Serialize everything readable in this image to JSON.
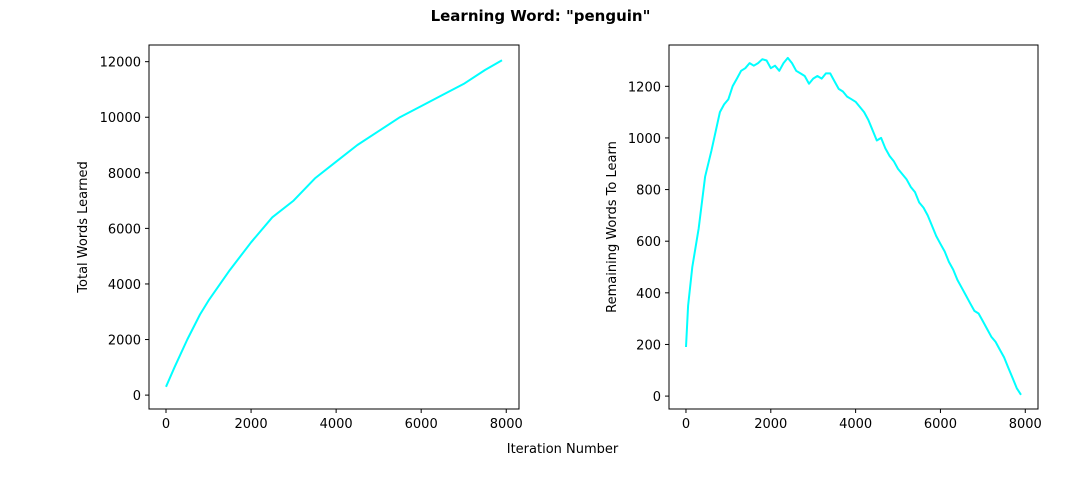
{
  "figure": {
    "title": "Learning Word: \"penguin\"",
    "xlabel": "Iteration Number"
  },
  "colors": {
    "line": "#00ffff"
  },
  "chart_data": [
    {
      "type": "line",
      "name": "total-words-learned",
      "xlabel": "",
      "ylabel": "Total Words Learned",
      "xlim": [
        -400,
        8300
      ],
      "ylim": [
        -500,
        12600
      ],
      "xticks": [
        0,
        2000,
        4000,
        6000,
        8000
      ],
      "yticks": [
        0,
        2000,
        4000,
        6000,
        8000,
        10000,
        12000
      ],
      "series": [
        {
          "x": [
            0,
            200,
            500,
            800,
            1000,
            1500,
            2000,
            2500,
            3000,
            3500,
            4000,
            4500,
            5000,
            5500,
            6000,
            6500,
            7000,
            7500,
            7900
          ],
          "y": [
            300,
            1000,
            2000,
            2900,
            3400,
            4500,
            5500,
            6400,
            7000,
            7800,
            8400,
            9000,
            9500,
            10000,
            10400,
            10800,
            11200,
            11700,
            12050
          ]
        }
      ]
    },
    {
      "type": "line",
      "name": "remaining-words-to-learn",
      "xlabel": "",
      "ylabel": "Remaining Words To Learn",
      "xlim": [
        -400,
        8300
      ],
      "ylim": [
        -50,
        1360
      ],
      "xticks": [
        0,
        2000,
        4000,
        6000,
        8000
      ],
      "yticks": [
        0,
        200,
        400,
        600,
        800,
        1000,
        1200
      ],
      "series": [
        {
          "x": [
            0,
            50,
            150,
            300,
            450,
            600,
            800,
            900,
            1000,
            1100,
            1200,
            1300,
            1400,
            1500,
            1600,
            1700,
            1800,
            1900,
            2000,
            2100,
            2200,
            2300,
            2400,
            2500,
            2600,
            2700,
            2800,
            2900,
            3000,
            3100,
            3200,
            3300,
            3400,
            3500,
            3600,
            3700,
            3800,
            3900,
            4000,
            4100,
            4200,
            4300,
            4400,
            4500,
            4600,
            4700,
            4800,
            4900,
            5000,
            5100,
            5200,
            5300,
            5400,
            5500,
            5600,
            5700,
            5800,
            5900,
            6000,
            6100,
            6200,
            6300,
            6400,
            6500,
            6600,
            6700,
            6800,
            6900,
            7000,
            7100,
            7200,
            7300,
            7400,
            7500,
            7600,
            7700,
            7800,
            7900
          ],
          "y": [
            190,
            350,
            500,
            650,
            850,
            950,
            1100,
            1130,
            1150,
            1200,
            1230,
            1260,
            1270,
            1290,
            1280,
            1290,
            1305,
            1300,
            1270,
            1280,
            1260,
            1290,
            1310,
            1290,
            1260,
            1250,
            1240,
            1210,
            1230,
            1240,
            1230,
            1250,
            1250,
            1220,
            1190,
            1180,
            1160,
            1150,
            1140,
            1120,
            1100,
            1070,
            1030,
            990,
            1000,
            960,
            930,
            910,
            880,
            860,
            840,
            810,
            790,
            750,
            730,
            700,
            660,
            620,
            590,
            560,
            520,
            490,
            450,
            420,
            390,
            360,
            330,
            320,
            290,
            260,
            230,
            210,
            180,
            150,
            110,
            70,
            30,
            5
          ]
        }
      ]
    }
  ]
}
